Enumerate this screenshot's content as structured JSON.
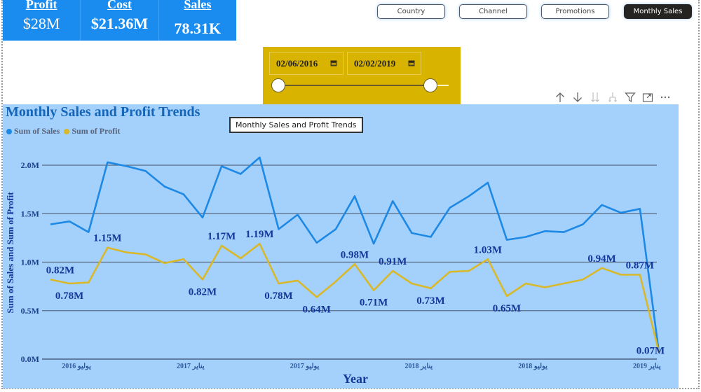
{
  "kpis": [
    {
      "label": "Profit",
      "value": "$28M"
    },
    {
      "label": "Cost",
      "value": "$21.36M"
    },
    {
      "label": "Sales",
      "value": "78.31K"
    }
  ],
  "nav": {
    "buttons": [
      "Country",
      "Channel",
      "Promotions",
      "Monthly Sales"
    ],
    "active": "Monthly Sales"
  },
  "date_slicer": {
    "start": "02/06/2016",
    "end": "02/02/2019"
  },
  "visual_toolbar": {
    "icons": [
      "arrow-up-icon",
      "arrow-down-icon",
      "double-arrow-down-icon",
      "expand-hierarchy-icon",
      "filter-icon",
      "focus-mode-icon",
      "more-options-icon"
    ]
  },
  "tooltip": {
    "text": "Monthly Sales and Profit Trends"
  },
  "colors": {
    "sales": "#1e88e5",
    "profit": "#d9b829",
    "kpi_bg": "#1a8cf0",
    "slicer_bg": "#d8b400",
    "chart_bg": "#a3d1fc"
  },
  "chart_data": {
    "type": "line",
    "title": "Monthly Sales and Profit Trends",
    "xlabel": "Year",
    "ylabel": "Sum of Sales and Sum of Profit",
    "ylim": [
      0,
      2.0
    ],
    "yticks": [
      "0.0M",
      "0.5M",
      "1.0M",
      "1.5M",
      "2.0M"
    ],
    "grid": true,
    "legend_position": "top-left",
    "x_tick_labels": [
      "يوليو 2016",
      "يناير 2017",
      "يوليو 2017",
      "يناير 2018",
      "يوليو 2018",
      "يناير 2019"
    ],
    "x": [
      "2016-06",
      "2016-07",
      "2016-08",
      "2016-09",
      "2016-10",
      "2016-11",
      "2016-12",
      "2017-01",
      "2017-02",
      "2017-03",
      "2017-04",
      "2017-05",
      "2017-06",
      "2017-07",
      "2017-08",
      "2017-09",
      "2017-10",
      "2017-11",
      "2017-12",
      "2018-01",
      "2018-02",
      "2018-03",
      "2018-04",
      "2018-05",
      "2018-06",
      "2018-07",
      "2018-08",
      "2018-09",
      "2018-10",
      "2018-11",
      "2018-12",
      "2019-01",
      "2019-02"
    ],
    "series": [
      {
        "name": "Sum of Sales",
        "unit": "M",
        "values": [
          1.39,
          1.42,
          1.31,
          2.03,
          1.99,
          1.94,
          1.78,
          1.7,
          1.46,
          1.99,
          1.91,
          2.08,
          1.34,
          1.49,
          1.2,
          1.34,
          1.68,
          1.19,
          1.63,
          1.3,
          1.26,
          1.56,
          1.68,
          1.82,
          1.23,
          1.26,
          1.32,
          1.31,
          1.39,
          1.59,
          1.51,
          1.55,
          0.07
        ]
      },
      {
        "name": "Sum of Profit",
        "unit": "M",
        "values": [
          0.82,
          0.78,
          0.79,
          1.15,
          1.1,
          1.08,
          0.99,
          1.03,
          0.82,
          1.17,
          1.04,
          1.19,
          0.78,
          0.81,
          0.64,
          0.8,
          0.98,
          0.71,
          0.91,
          0.78,
          0.73,
          0.9,
          0.91,
          1.03,
          0.65,
          0.78,
          0.74,
          0.78,
          0.82,
          0.94,
          0.87,
          0.87,
          0.07
        ]
      }
    ],
    "data_labels": [
      {
        "index": 0,
        "text": "0.82M",
        "pos": "above"
      },
      {
        "index": 1,
        "text": "0.78M",
        "pos": "below"
      },
      {
        "index": 3,
        "text": "1.15M",
        "pos": "above"
      },
      {
        "index": 8,
        "text": "0.82M",
        "pos": "below"
      },
      {
        "index": 9,
        "text": "1.17M",
        "pos": "above"
      },
      {
        "index": 11,
        "text": "1.19M",
        "pos": "above"
      },
      {
        "index": 12,
        "text": "0.78M",
        "pos": "below"
      },
      {
        "index": 14,
        "text": "0.64M",
        "pos": "below"
      },
      {
        "index": 16,
        "text": "0.98M",
        "pos": "above"
      },
      {
        "index": 17,
        "text": "0.71M",
        "pos": "below"
      },
      {
        "index": 18,
        "text": "0.91M",
        "pos": "above"
      },
      {
        "index": 20,
        "text": "0.73M",
        "pos": "below"
      },
      {
        "index": 23,
        "text": "1.03M",
        "pos": "above"
      },
      {
        "index": 24,
        "text": "0.65M",
        "pos": "below"
      },
      {
        "index": 29,
        "text": "0.94M",
        "pos": "above"
      },
      {
        "index": 31,
        "text": "0.87M",
        "pos": "above"
      },
      {
        "index": 32,
        "text": "0.07M",
        "pos": "below"
      }
    ]
  }
}
